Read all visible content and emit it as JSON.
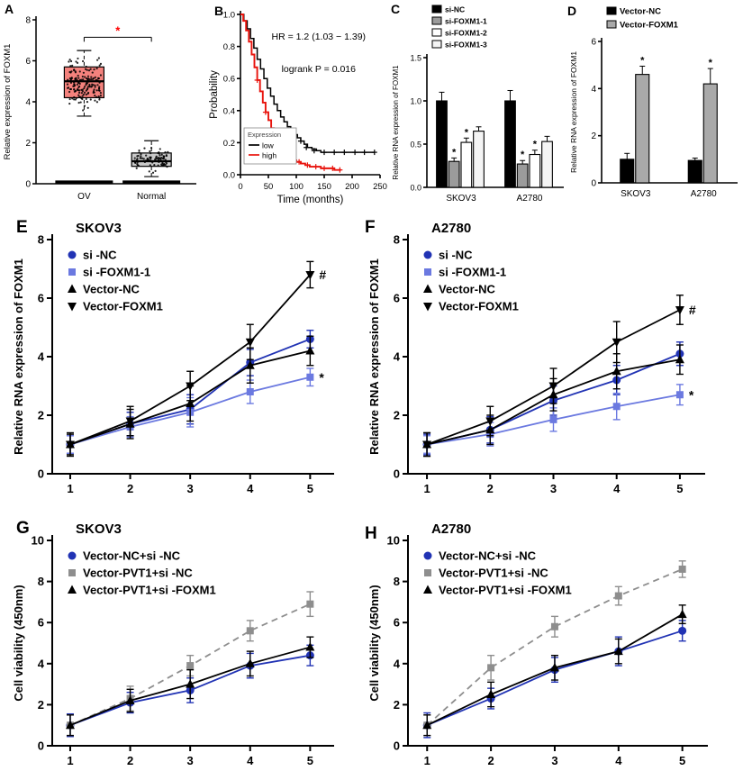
{
  "figure": {
    "background": "#ffffff"
  },
  "chart_data": [
    {
      "panel": "A",
      "type": "box",
      "ylabel": "Relative expression of FOXM1",
      "ylim": [
        0,
        8
      ],
      "yticks": [
        0,
        2,
        4,
        6,
        8
      ],
      "categories": [
        "OV",
        "Normal"
      ],
      "boxes": [
        {
          "label": "OV",
          "fill": "#f4827d",
          "median": 5.0,
          "q1": 4.2,
          "q3": 5.7,
          "whisker_low": 3.3,
          "whisker_high": 6.5,
          "scatter_center": 4.9,
          "scatter_spread": 1.0,
          "scatter_n": 170
        },
        {
          "label": "Normal",
          "fill": "#c9c9c9",
          "median": 1.1,
          "q1": 0.85,
          "q3": 1.5,
          "whisker_low": 0.35,
          "whisker_high": 2.1,
          "scatter_center": 1.2,
          "scatter_spread": 0.45,
          "scatter_n": 90
        }
      ],
      "zero_strip": true,
      "significance": {
        "symbol": "*",
        "color": "#ff0000",
        "y": 7.15
      }
    },
    {
      "panel": "B",
      "type": "km",
      "xlabel": "Time (months)",
      "ylabel": "Probability",
      "xlim": [
        0,
        250
      ],
      "ylim": [
        0,
        1.0
      ],
      "xticks": [
        0,
        50,
        100,
        150,
        200,
        250
      ],
      "yticks": [
        "0.0",
        "0.2",
        "0.4",
        "0.6",
        "0.8",
        "1.0"
      ],
      "annotations": [
        "HR = 1.2 (1.03 − 1.39)",
        "logrank P = 0.016"
      ],
      "legend_title": "Expression",
      "series": [
        {
          "name": "low",
          "color": "#000000",
          "points": [
            [
              0,
              1.0
            ],
            [
              6,
              0.96
            ],
            [
              12,
              0.91
            ],
            [
              18,
              0.85
            ],
            [
              24,
              0.79
            ],
            [
              30,
              0.72
            ],
            [
              36,
              0.66
            ],
            [
              42,
              0.6
            ],
            [
              48,
              0.54
            ],
            [
              54,
              0.49
            ],
            [
              60,
              0.44
            ],
            [
              66,
              0.4
            ],
            [
              72,
              0.36
            ],
            [
              78,
              0.33
            ],
            [
              84,
              0.3
            ],
            [
              90,
              0.27
            ],
            [
              96,
              0.25
            ],
            [
              102,
              0.23
            ],
            [
              108,
              0.21
            ],
            [
              114,
              0.19
            ],
            [
              120,
              0.17
            ],
            [
              128,
              0.16
            ],
            [
              136,
              0.15
            ],
            [
              144,
              0.14
            ],
            [
              240,
              0.14
            ]
          ],
          "censors": [
            [
              108,
              0.21
            ],
            [
              118,
              0.17
            ],
            [
              132,
              0.15
            ],
            [
              150,
              0.14
            ],
            [
              168,
              0.14
            ],
            [
              186,
              0.14
            ],
            [
              205,
              0.14
            ],
            [
              222,
              0.14
            ],
            [
              240,
              0.14
            ]
          ]
        },
        {
          "name": "high",
          "color": "#e8130c",
          "points": [
            [
              0,
              1.0
            ],
            [
              5,
              0.96
            ],
            [
              10,
              0.9
            ],
            [
              15,
              0.83
            ],
            [
              20,
              0.75
            ],
            [
              25,
              0.67
            ],
            [
              30,
              0.59
            ],
            [
              35,
              0.52
            ],
            [
              40,
              0.45
            ],
            [
              45,
              0.39
            ],
            [
              50,
              0.34
            ],
            [
              55,
              0.29
            ],
            [
              60,
              0.25
            ],
            [
              65,
              0.22
            ],
            [
              70,
              0.19
            ],
            [
              75,
              0.16
            ],
            [
              80,
              0.14
            ],
            [
              85,
              0.12
            ],
            [
              90,
              0.11
            ],
            [
              95,
              0.09
            ],
            [
              100,
              0.08
            ],
            [
              108,
              0.07
            ],
            [
              116,
              0.06
            ],
            [
              124,
              0.05
            ],
            [
              134,
              0.05
            ],
            [
              144,
              0.04
            ],
            [
              156,
              0.04
            ],
            [
              168,
              0.03
            ],
            [
              180,
              0.03
            ]
          ],
          "censors": [
            [
              30,
              0.59
            ],
            [
              45,
              0.39
            ],
            [
              60,
              0.25
            ],
            [
              75,
              0.16
            ],
            [
              90,
              0.11
            ],
            [
              105,
              0.08
            ],
            [
              120,
              0.06
            ],
            [
              135,
              0.05
            ],
            [
              150,
              0.04
            ],
            [
              165,
              0.04
            ],
            [
              178,
              0.03
            ]
          ]
        }
      ]
    },
    {
      "panel": "C",
      "type": "bar",
      "ylabel": "Relative RNA expression of FOXM1",
      "ylim": [
        0,
        1.5
      ],
      "yticks": [
        "0.0",
        "0.5",
        "1.0",
        "1.5"
      ],
      "categories": [
        "SKOV3",
        "A2780"
      ],
      "series": [
        {
          "name": "si-NC",
          "fill": "#000000",
          "values": [
            1.0,
            1.0
          ],
          "errors": [
            0.1,
            0.12
          ],
          "sig": [
            "",
            ""
          ]
        },
        {
          "name": "si-FOXM1-1",
          "fill": "#9b9b9b",
          "values": [
            0.3,
            0.27
          ],
          "errors": [
            0.04,
            0.04
          ],
          "sig": [
            "*",
            "*"
          ]
        },
        {
          "name": "si-FOXM1-2",
          "fill": "#ffffff",
          "values": [
            0.52,
            0.38
          ],
          "errors": [
            0.05,
            0.05
          ],
          "sig": [
            "*",
            "*"
          ]
        },
        {
          "name": "si-FOXM1-3",
          "fill": "#f4f4f4",
          "values": [
            0.65,
            0.53
          ],
          "errors": [
            0.05,
            0.06
          ],
          "sig": [
            "",
            ""
          ]
        }
      ]
    },
    {
      "panel": "D",
      "type": "bar",
      "ylabel": "Relative RNA expression of FOXM1",
      "ylim": [
        0,
        6
      ],
      "yticks": [
        "0",
        "2",
        "4",
        "6"
      ],
      "categories": [
        "SKOV3",
        "A2780"
      ],
      "series": [
        {
          "name": "Vector-NC",
          "fill": "#000000",
          "values": [
            1.0,
            0.95
          ],
          "errors": [
            0.25,
            0.1
          ],
          "sig": [
            "",
            ""
          ]
        },
        {
          "name": "Vector-FOXM1",
          "fill": "#a9a9a9",
          "values": [
            4.6,
            4.2
          ],
          "errors": [
            0.35,
            0.65
          ],
          "sig": [
            "*",
            "*"
          ]
        }
      ]
    },
    {
      "panel": "E",
      "type": "line",
      "title": "SKOV3",
      "ylabel": "Relative RNA expression of FOXM1",
      "xlim": [
        0.7,
        5.4
      ],
      "ylim": [
        0,
        8
      ],
      "xticks": [
        1,
        2,
        3,
        4,
        5
      ],
      "yticks": [
        0,
        2,
        4,
        6,
        8
      ],
      "x": [
        1,
        2,
        3,
        4,
        5
      ],
      "series": [
        {
          "name": "si -NC",
          "color": "#2133b4",
          "marker": "circle",
          "dash": false,
          "values": [
            1.0,
            1.7,
            2.2,
            3.8,
            4.6
          ],
          "errors": [
            0.3,
            0.4,
            0.5,
            0.45,
            0.3
          ],
          "end_label": ""
        },
        {
          "name": "si -FOXM1-1",
          "color": "#6b79e0",
          "marker": "square",
          "dash": false,
          "values": [
            1.0,
            1.6,
            2.1,
            2.8,
            3.3
          ],
          "errors": [
            0.3,
            0.35,
            0.5,
            0.4,
            0.3
          ],
          "end_label": "*"
        },
        {
          "name": "Vector-NC",
          "color": "#000000",
          "marker": "tri-up",
          "dash": false,
          "values": [
            1.0,
            1.7,
            2.4,
            3.7,
            4.2
          ],
          "errors": [
            0.35,
            0.5,
            0.6,
            0.6,
            0.5
          ],
          "end_label": ""
        },
        {
          "name": "Vector-FOXM1",
          "color": "#000000",
          "marker": "tri-down",
          "dash": false,
          "values": [
            1.0,
            1.8,
            3.0,
            4.5,
            6.8
          ],
          "errors": [
            0.4,
            0.5,
            0.5,
            0.6,
            0.45
          ],
          "end_label": "#"
        }
      ]
    },
    {
      "panel": "F",
      "type": "line",
      "title": "A2780",
      "ylabel": "Relative RNA expression of FOXM1",
      "xlim": [
        0.7,
        5.4
      ],
      "ylim": [
        0,
        8
      ],
      "xticks": [
        1,
        2,
        3,
        4,
        5
      ],
      "yticks": [
        0,
        2,
        4,
        6,
        8
      ],
      "x": [
        1,
        2,
        3,
        4,
        5
      ],
      "series": [
        {
          "name": "si -NC",
          "color": "#2133b4",
          "marker": "circle",
          "dash": false,
          "values": [
            1.0,
            1.5,
            2.5,
            3.2,
            4.1
          ],
          "errors": [
            0.35,
            0.45,
            0.5,
            0.5,
            0.4
          ],
          "end_label": ""
        },
        {
          "name": "si -FOXM1-1",
          "color": "#6b79e0",
          "marker": "square",
          "dash": false,
          "values": [
            1.0,
            1.35,
            1.85,
            2.3,
            2.7
          ],
          "errors": [
            0.3,
            0.4,
            0.4,
            0.45,
            0.35
          ],
          "end_label": "*"
        },
        {
          "name": "Vector-NC",
          "color": "#000000",
          "marker": "tri-up",
          "dash": false,
          "values": [
            1.0,
            1.5,
            2.7,
            3.5,
            3.9
          ],
          "errors": [
            0.4,
            0.5,
            0.55,
            0.6,
            0.5
          ],
          "end_label": ""
        },
        {
          "name": "Vector-FOXM1",
          "color": "#000000",
          "marker": "tri-down",
          "dash": false,
          "values": [
            1.0,
            1.8,
            3.0,
            4.5,
            5.6
          ],
          "errors": [
            0.4,
            0.5,
            0.6,
            0.7,
            0.5
          ],
          "end_label": "#"
        }
      ]
    },
    {
      "panel": "G",
      "type": "line",
      "title": "SKOV3",
      "ylabel": "Cell viability (450nm)",
      "xlim": [
        0.7,
        5.4
      ],
      "ylim": [
        0,
        10
      ],
      "xticks": [
        1,
        2,
        3,
        4,
        5
      ],
      "yticks": [
        0,
        2,
        4,
        6,
        8,
        10
      ],
      "x": [
        1,
        2,
        3,
        4,
        5
      ],
      "series": [
        {
          "name": "Vector-NC+si -NC",
          "color": "#2133b4",
          "marker": "circle",
          "dash": false,
          "values": [
            1.0,
            2.1,
            2.7,
            3.9,
            4.4
          ],
          "errors": [
            0.55,
            0.5,
            0.6,
            0.6,
            0.5
          ],
          "end_label": ""
        },
        {
          "name": "Vector-PVT1+si -NC",
          "color": "#8e8e8e",
          "marker": "square",
          "dash": true,
          "values": [
            1.0,
            2.3,
            3.9,
            5.6,
            6.9
          ],
          "errors": [
            0.5,
            0.6,
            0.5,
            0.5,
            0.6
          ],
          "end_label": ""
        },
        {
          "name": "Vector-PVT1+si -FOXM1",
          "color": "#000000",
          "marker": "tri-up",
          "dash": false,
          "values": [
            1.0,
            2.2,
            3.0,
            4.0,
            4.8
          ],
          "errors": [
            0.5,
            0.55,
            0.7,
            0.6,
            0.5
          ],
          "end_label": ""
        }
      ]
    },
    {
      "panel": "H",
      "type": "line",
      "title": "A2780",
      "ylabel": "Cell viability (450nm)",
      "xlim": [
        0.7,
        5.4
      ],
      "ylim": [
        0,
        10
      ],
      "xticks": [
        1,
        2,
        3,
        4,
        5
      ],
      "yticks": [
        0,
        2,
        4,
        6,
        8,
        10
      ],
      "x": [
        1,
        2,
        3,
        4,
        5
      ],
      "series": [
        {
          "name": "Vector-NC+si -NC",
          "color": "#2133b4",
          "marker": "circle",
          "dash": false,
          "values": [
            1.0,
            2.3,
            3.7,
            4.6,
            5.6
          ],
          "errors": [
            0.6,
            0.5,
            0.6,
            0.7,
            0.5
          ],
          "end_label": ""
        },
        {
          "name": "Vector-PVT1+si -NC",
          "color": "#8e8e8e",
          "marker": "square",
          "dash": true,
          "values": [
            1.0,
            3.8,
            5.8,
            7.3,
            8.6
          ],
          "errors": [
            0.5,
            0.6,
            0.5,
            0.45,
            0.4
          ],
          "end_label": ""
        },
        {
          "name": "Vector-PVT1+si -FOXM1",
          "color": "#000000",
          "marker": "tri-up",
          "dash": false,
          "values": [
            1.0,
            2.5,
            3.8,
            4.6,
            6.4
          ],
          "errors": [
            0.5,
            0.6,
            0.6,
            0.6,
            0.45
          ],
          "end_label": ""
        }
      ]
    }
  ]
}
